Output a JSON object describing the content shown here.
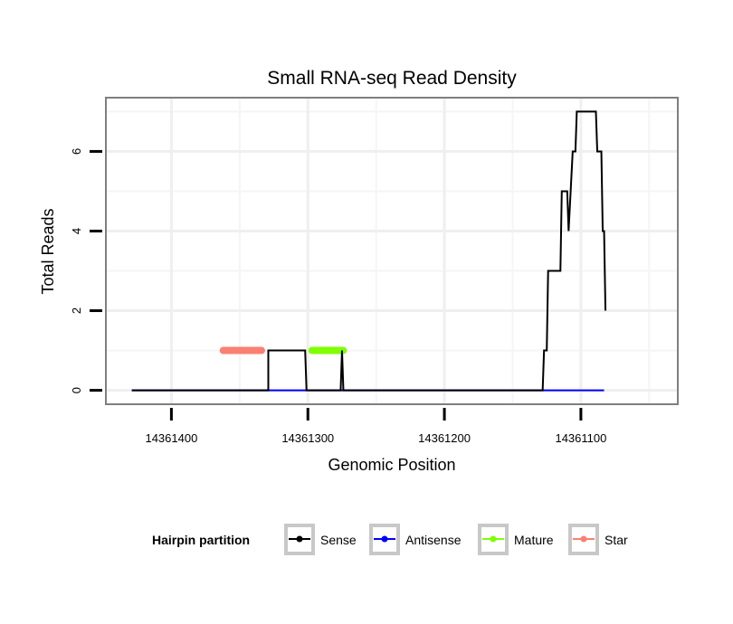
{
  "chart_data": {
    "type": "line",
    "title": "Small RNA-seq Read Density",
    "xlabel": "Genomic Position",
    "ylabel": "Total Reads",
    "x_reversed": true,
    "xlim": [
      14361448,
      14361029
    ],
    "ylim": [
      -0.35,
      7.35
    ],
    "x_ticks": [
      14361400,
      14361300,
      14361200,
      14361100
    ],
    "x_tick_labels": [
      "14361400",
      "14361300",
      "14361200",
      "14361100"
    ],
    "y_ticks": [
      0,
      2,
      4,
      6
    ],
    "y_tick_labels": [
      "0",
      "2",
      "4",
      "6"
    ],
    "grid": true,
    "legend": {
      "title": "Hairpin partition",
      "position": "bottom",
      "entries": [
        {
          "label": "Sense",
          "color": "#000000"
        },
        {
          "label": "Antisense",
          "color": "#0000ff"
        },
        {
          "label": "Mature",
          "color": "#7fff00"
        },
        {
          "label": "Star",
          "color": "#fa8072"
        }
      ]
    },
    "series": [
      {
        "name": "Sense",
        "color": "#000000",
        "stroke": "line",
        "x": [
          14361429,
          14361329,
          14361329,
          14361328,
          14361302,
          14361301,
          14361300,
          14361276,
          14361275,
          14361274,
          14361128,
          14361127,
          14361125,
          14361124,
          14361123,
          14361122,
          14361115,
          14361114,
          14361110,
          14361109,
          14361106,
          14361105,
          14361104,
          14361103,
          14361102,
          14361101,
          14361100,
          14361099,
          14361089,
          14361088,
          14361086,
          14361085,
          14361084,
          14361083,
          14361082
        ],
        "y": [
          0,
          0,
          1,
          1,
          1,
          0,
          0,
          0,
          1,
          0,
          0,
          1,
          1,
          3,
          3,
          3,
          3,
          5,
          5,
          4,
          6,
          6,
          6,
          7,
          7,
          7,
          7,
          7,
          7,
          6,
          6,
          6,
          4,
          4,
          2
        ]
      },
      {
        "name": "Antisense",
        "color": "#0000ff",
        "stroke": "line",
        "x": [
          14361429,
          14361083
        ],
        "y": [
          0,
          0
        ]
      },
      {
        "name": "Mature",
        "color": "#7fff00",
        "stroke": "thick",
        "x": [
          14361297,
          14361274
        ],
        "y": [
          1,
          1
        ]
      },
      {
        "name": "Star",
        "color": "#fa8072",
        "stroke": "thick",
        "x": [
          14361362,
          14361334
        ],
        "y": [
          1,
          1
        ]
      }
    ]
  }
}
